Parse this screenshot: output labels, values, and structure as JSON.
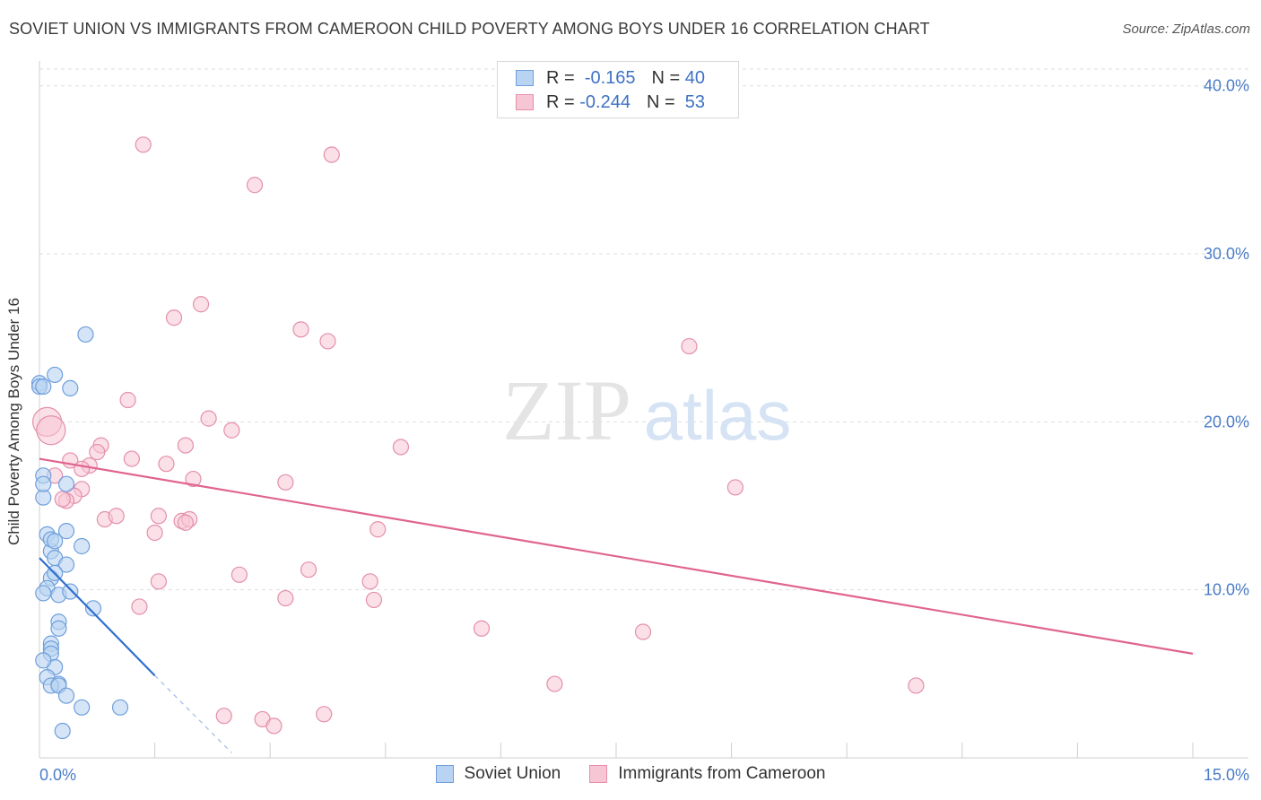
{
  "title": "SOVIET UNION VS IMMIGRANTS FROM CAMEROON CHILD POVERTY AMONG BOYS UNDER 16 CORRELATION CHART",
  "source": "Source: ZipAtlas.com",
  "watermark": {
    "zip": "ZIP",
    "atlas": "atlas"
  },
  "legend": {
    "rows": [
      {
        "r_label": "R =",
        "r_value": "-0.165",
        "n_label": "N =",
        "n_value": "40"
      },
      {
        "r_label": "R =",
        "r_value": "-0.244",
        "n_label": "N =",
        "n_value": "53"
      }
    ]
  },
  "colors": {
    "soviet_fill": "#b9d3f2",
    "soviet_stroke": "#6f9fdc",
    "soviet_line": "#2e6fcf",
    "cameroon_fill": "#f7c6d5",
    "cameroon_stroke": "#e48fab",
    "cameroon_line": "#e0648f",
    "grid": "#dddddd",
    "axis_text": "#4a7cc8"
  },
  "chart_data": {
    "type": "scatter",
    "title": "SOVIET UNION VS IMMIGRANTS FROM CAMEROON CHILD POVERTY AMONG BOYS UNDER 16 CORRELATION CHART",
    "xlabel": "",
    "ylabel": "Child Poverty Among Boys Under 16",
    "xlim": [
      0,
      15
    ],
    "ylim": [
      0,
      41
    ],
    "x_tick_labels": [
      "0.0%",
      "15.0%"
    ],
    "y_ticks": [
      10,
      20,
      30,
      40
    ],
    "y_tick_labels": [
      "10.0%",
      "20.0%",
      "30.0%",
      "40.0%"
    ],
    "grid": true,
    "legend_position": "top-center",
    "series": [
      {
        "name": "Soviet Union",
        "R": -0.165,
        "N": 40,
        "points": [
          [
            0.0,
            22.3
          ],
          [
            0.0,
            22.1
          ],
          [
            0.05,
            22.1
          ],
          [
            0.2,
            22.8
          ],
          [
            0.4,
            22.0
          ],
          [
            0.6,
            25.2
          ],
          [
            0.05,
            16.8
          ],
          [
            0.05,
            15.5
          ],
          [
            0.05,
            16.3
          ],
          [
            0.35,
            16.3
          ],
          [
            0.1,
            13.3
          ],
          [
            0.15,
            12.3
          ],
          [
            0.15,
            13.0
          ],
          [
            0.35,
            13.5
          ],
          [
            0.55,
            12.6
          ],
          [
            0.2,
            11.9
          ],
          [
            0.35,
            11.5
          ],
          [
            0.15,
            10.7
          ],
          [
            0.2,
            11.0
          ],
          [
            0.1,
            10.1
          ],
          [
            0.05,
            9.8
          ],
          [
            0.25,
            9.7
          ],
          [
            0.4,
            9.9
          ],
          [
            0.7,
            8.9
          ],
          [
            0.25,
            8.1
          ],
          [
            0.25,
            7.7
          ],
          [
            0.15,
            6.8
          ],
          [
            0.15,
            6.5
          ],
          [
            0.15,
            6.2
          ],
          [
            0.2,
            5.4
          ],
          [
            0.1,
            4.8
          ],
          [
            0.25,
            4.4
          ],
          [
            0.15,
            4.3
          ],
          [
            0.25,
            4.3
          ],
          [
            0.35,
            3.7
          ],
          [
            0.55,
            3.0
          ],
          [
            1.05,
            3.0
          ],
          [
            0.3,
            1.6
          ],
          [
            0.05,
            5.8
          ],
          [
            0.2,
            12.9
          ]
        ],
        "trend": {
          "x": [
            0.0,
            1.5
          ],
          "y": [
            11.9,
            4.9
          ]
        },
        "trend_extension": {
          "x": [
            1.5,
            2.5
          ],
          "y": [
            4.9,
            0.3
          ]
        }
      },
      {
        "name": "Immigrants from Cameroon",
        "R": -0.244,
        "N": 53,
        "points": [
          [
            1.35,
            36.5
          ],
          [
            3.8,
            35.9
          ],
          [
            2.8,
            34.1
          ],
          [
            2.1,
            27.0
          ],
          [
            1.75,
            26.2
          ],
          [
            3.4,
            25.5
          ],
          [
            3.75,
            24.8
          ],
          [
            8.45,
            24.5
          ],
          [
            1.15,
            21.3
          ],
          [
            0.1,
            20.0
          ],
          [
            0.15,
            19.5
          ],
          [
            2.2,
            20.2
          ],
          [
            2.5,
            19.5
          ],
          [
            0.8,
            18.6
          ],
          [
            1.9,
            18.6
          ],
          [
            4.7,
            18.5
          ],
          [
            0.75,
            18.2
          ],
          [
            1.2,
            17.8
          ],
          [
            0.4,
            17.7
          ],
          [
            1.65,
            17.5
          ],
          [
            0.65,
            17.4
          ],
          [
            0.55,
            17.2
          ],
          [
            0.2,
            16.8
          ],
          [
            2.0,
            16.6
          ],
          [
            3.2,
            16.4
          ],
          [
            9.05,
            16.1
          ],
          [
            0.55,
            16.0
          ],
          [
            0.45,
            15.6
          ],
          [
            0.35,
            15.3
          ],
          [
            0.3,
            15.4
          ],
          [
            0.85,
            14.2
          ],
          [
            1.0,
            14.4
          ],
          [
            1.55,
            14.4
          ],
          [
            1.85,
            14.1
          ],
          [
            1.95,
            14.2
          ],
          [
            1.5,
            13.4
          ],
          [
            4.4,
            13.6
          ],
          [
            3.5,
            11.2
          ],
          [
            2.6,
            10.9
          ],
          [
            1.55,
            10.5
          ],
          [
            4.3,
            10.5
          ],
          [
            3.2,
            9.5
          ],
          [
            1.3,
            9.0
          ],
          [
            4.35,
            9.4
          ],
          [
            5.75,
            7.7
          ],
          [
            7.85,
            7.5
          ],
          [
            6.7,
            4.4
          ],
          [
            11.4,
            4.3
          ],
          [
            2.4,
            2.5
          ],
          [
            3.7,
            2.6
          ],
          [
            2.9,
            2.3
          ],
          [
            3.05,
            1.9
          ],
          [
            1.9,
            14.0
          ]
        ],
        "trend": {
          "x": [
            0.0,
            15.0
          ],
          "y": [
            17.8,
            6.2
          ]
        }
      }
    ]
  },
  "bottom_legend": {
    "items": [
      "Soviet Union",
      "Immigrants from Cameroon"
    ]
  }
}
